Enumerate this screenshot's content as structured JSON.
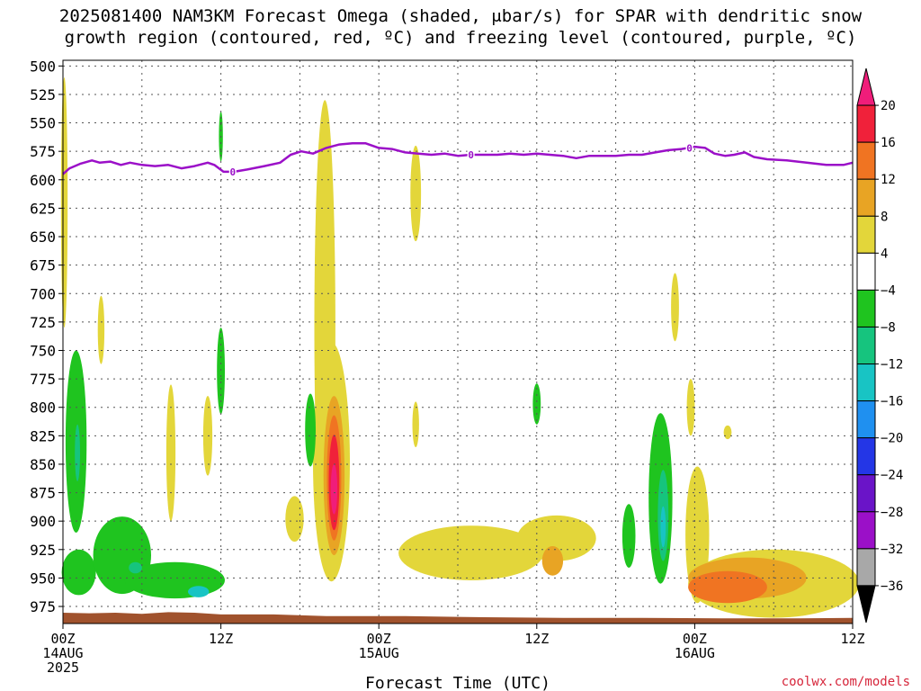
{
  "title": {
    "line1": "2025081400 NAM3KM Forecast Omega (shaded, μbar/s) for SPAR with dendritic snow",
    "line2": "growth region (contoured, red, ºC) and freezing level (contoured, purple, ºC)"
  },
  "credit": "coolwx.com/models",
  "chart_data": {
    "type": "heatmap",
    "title": "2025081400 NAM3KM Forecast Omega (shaded, μbar/s) for SPAR with dendritic snow growth region (contoured, red, ºC) and freezing level (contoured, purple, ºC)",
    "xlabel": "Forecast Time (UTC)",
    "ylabel": "",
    "xlim_hours": [
      0,
      60
    ],
    "ylim": [
      990,
      495
    ],
    "y_ticks": [
      500,
      525,
      550,
      575,
      600,
      625,
      650,
      675,
      700,
      725,
      750,
      775,
      800,
      825,
      850,
      875,
      900,
      925,
      950,
      975
    ],
    "x_ticks": [
      {
        "hour": 0,
        "lines": [
          "00Z",
          "14AUG",
          "2025"
        ]
      },
      {
        "hour": 12,
        "lines": [
          "12Z"
        ]
      },
      {
        "hour": 24,
        "lines": [
          "00Z",
          "15AUG"
        ]
      },
      {
        "hour": 36,
        "lines": [
          "12Z"
        ]
      },
      {
        "hour": 48,
        "lines": [
          "00Z",
          "16AUG"
        ]
      },
      {
        "hour": 60,
        "lines": [
          "12Z"
        ]
      }
    ],
    "grid": true,
    "colorbar": {
      "units": "μbar/s",
      "labels": [
        "20",
        "16",
        "12",
        "8",
        "4",
        "−4",
        "−8",
        "−12",
        "−16",
        "−20",
        "−24",
        "−28",
        "−32",
        "−36"
      ],
      "colors": [
        "#f01d7a",
        "#f0213a",
        "#f07422",
        "#e8a424",
        "#e3d63a",
        "#ffffff",
        "#1fc41f",
        "#16c47e",
        "#18c4c4",
        "#1f90f0",
        "#2436e6",
        "#6a14c8",
        "#9b10c8",
        "#a8a8a8",
        "#000000"
      ]
    },
    "freezing_level": {
      "label": "0",
      "color": "#9b10c8",
      "points": [
        [
          0.0,
          595
        ],
        [
          0.5,
          590
        ],
        [
          1.3,
          586
        ],
        [
          2.2,
          583
        ],
        [
          2.8,
          585
        ],
        [
          3.6,
          584
        ],
        [
          4.4,
          587
        ],
        [
          5.1,
          585
        ],
        [
          6.0,
          587
        ],
        [
          7.0,
          588
        ],
        [
          8.0,
          587
        ],
        [
          9.0,
          590
        ],
        [
          10.0,
          588
        ],
        [
          11.0,
          585
        ],
        [
          11.5,
          587
        ],
        [
          12.2,
          593
        ],
        [
          13.0,
          593
        ],
        [
          14.0,
          591
        ],
        [
          15.3,
          588
        ],
        [
          16.5,
          585
        ],
        [
          17.3,
          578
        ],
        [
          18.1,
          575
        ],
        [
          19.0,
          577
        ],
        [
          20.0,
          572
        ],
        [
          21.0,
          569
        ],
        [
          22.0,
          568
        ],
        [
          23.0,
          568
        ],
        [
          24.0,
          572
        ],
        [
          25.0,
          573
        ],
        [
          26.0,
          576
        ],
        [
          27.0,
          577
        ],
        [
          28.0,
          578
        ],
        [
          29.0,
          577
        ],
        [
          30.0,
          579
        ],
        [
          31.0,
          578
        ],
        [
          32.0,
          578
        ],
        [
          33.0,
          578
        ],
        [
          34.0,
          577
        ],
        [
          35.0,
          578
        ],
        [
          36.0,
          577
        ],
        [
          37.0,
          578
        ],
        [
          38.0,
          579
        ],
        [
          39.0,
          581
        ],
        [
          40.0,
          579
        ],
        [
          41.0,
          579
        ],
        [
          42.0,
          579
        ],
        [
          43.0,
          578
        ],
        [
          44.0,
          578
        ],
        [
          45.0,
          576
        ],
        [
          46.0,
          574
        ],
        [
          47.0,
          573
        ],
        [
          48.0,
          571
        ],
        [
          48.8,
          572
        ],
        [
          49.5,
          577
        ],
        [
          50.3,
          579
        ],
        [
          51.0,
          578
        ],
        [
          51.8,
          576
        ],
        [
          52.5,
          580
        ],
        [
          53.5,
          582
        ],
        [
          55.0,
          583
        ],
        [
          56.5,
          585
        ],
        [
          58.0,
          587
        ],
        [
          59.3,
          587
        ],
        [
          60.0,
          585
        ]
      ],
      "zero_labels": [
        [
          12.9,
          593
        ],
        [
          31.0,
          578
        ],
        [
          47.6,
          572
        ]
      ]
    },
    "omega_regions": [
      {
        "band": "4 to 8",
        "color": "#e3d63a",
        "t": 19.9,
        "p": 730,
        "half_width_h": 0.8,
        "half_height_mb": 200
      },
      {
        "band": "4 to 8",
        "color": "#e3d63a",
        "t": 20.4,
        "p": 848,
        "half_width_h": 1.4,
        "half_height_mb": 105
      },
      {
        "band": "8 to 12",
        "color": "#e8a424",
        "t": 20.6,
        "p": 860,
        "half_width_h": 0.8,
        "half_height_mb": 70
      },
      {
        "band": "12 to 16",
        "color": "#f07422",
        "t": 20.6,
        "p": 862,
        "half_width_h": 0.55,
        "half_height_mb": 55
      },
      {
        "band": "16 to 20",
        "color": "#f0213a",
        "t": 20.6,
        "p": 866,
        "half_width_h": 0.4,
        "half_height_mb": 42
      },
      {
        "band": "20+",
        "color": "#f01d7a",
        "t": 20.6,
        "p": 872,
        "half_width_h": 0.25,
        "half_height_mb": 22
      },
      {
        "band": "4 to 8",
        "color": "#e3d63a",
        "t": 17.6,
        "p": 898,
        "half_width_h": 0.7,
        "half_height_mb": 20
      },
      {
        "band": "4 to 8",
        "color": "#e3d63a",
        "t": 26.8,
        "p": 612,
        "half_width_h": 0.4,
        "half_height_mb": 42
      },
      {
        "band": "4 to 8",
        "color": "#e3d63a",
        "t": 26.8,
        "p": 815,
        "half_width_h": 0.25,
        "half_height_mb": 20
      },
      {
        "band": "4 to 8",
        "color": "#e3d63a",
        "t": 2.9,
        "p": 732,
        "half_width_h": 0.25,
        "half_height_mb": 30
      },
      {
        "band": "4 to 8",
        "color": "#e3d63a",
        "t": 8.2,
        "p": 840,
        "half_width_h": 0.35,
        "half_height_mb": 60
      },
      {
        "band": "4 to 8",
        "color": "#e3d63a",
        "t": 11.0,
        "p": 825,
        "half_width_h": 0.35,
        "half_height_mb": 35
      },
      {
        "band": "4 to 8",
        "color": "#e3d63a",
        "t": 0.1,
        "p": 620,
        "half_width_h": 0.25,
        "half_height_mb": 110
      },
      {
        "band": "4 to 8",
        "color": "#e3d63a",
        "t": 31.0,
        "p": 928,
        "half_width_h": 5.5,
        "half_height_mb": 24
      },
      {
        "band": "4 to 8",
        "color": "#e3d63a",
        "t": 37.5,
        "p": 915,
        "half_width_h": 3.0,
        "half_height_mb": 20
      },
      {
        "band": "8 to 12",
        "color": "#e8a424",
        "t": 37.2,
        "p": 935,
        "half_width_h": 0.8,
        "half_height_mb": 13
      },
      {
        "band": "4 to 8",
        "color": "#e3d63a",
        "t": 46.5,
        "p": 712,
        "half_width_h": 0.3,
        "half_height_mb": 30
      },
      {
        "band": "4 to 8",
        "color": "#e3d63a",
        "t": 47.7,
        "p": 800,
        "half_width_h": 0.3,
        "half_height_mb": 25
      },
      {
        "band": "4 to 8",
        "color": "#e3d63a",
        "t": 50.5,
        "p": 822,
        "half_width_h": 0.3,
        "half_height_mb": 6
      },
      {
        "band": "4 to 8",
        "color": "#e3d63a",
        "t": 48.2,
        "p": 912,
        "half_width_h": 0.9,
        "half_height_mb": 60
      },
      {
        "band": "4 to 8",
        "color": "#e3d63a",
        "t": 54.0,
        "p": 955,
        "half_width_h": 6.5,
        "half_height_mb": 30
      },
      {
        "band": "8 to 12",
        "color": "#e8a424",
        "t": 52.0,
        "p": 950,
        "half_width_h": 4.5,
        "half_height_mb": 18
      },
      {
        "band": "12 to 16",
        "color": "#f07422",
        "t": 50.5,
        "p": 958,
        "half_width_h": 3.0,
        "half_height_mb": 14
      },
      {
        "band": "−4 to −8",
        "color": "#1fc41f",
        "t": 1.0,
        "p": 830,
        "half_width_h": 0.8,
        "half_height_mb": 80
      },
      {
        "band": "−4 to −8",
        "color": "#1fc41f",
        "t": 1.2,
        "p": 945,
        "half_width_h": 1.3,
        "half_height_mb": 20
      },
      {
        "band": "−4 to −8",
        "color": "#1fc41f",
        "t": 4.5,
        "p": 930,
        "half_width_h": 2.2,
        "half_height_mb": 34
      },
      {
        "band": "−4 to −8",
        "color": "#1fc41f",
        "t": 8.5,
        "p": 952,
        "half_width_h": 3.8,
        "half_height_mb": 16
      },
      {
        "band": "−12 to −16",
        "color": "#18c4c4",
        "t": 10.3,
        "p": 962,
        "half_width_h": 0.8,
        "half_height_mb": 5
      },
      {
        "band": "−8 to −12",
        "color": "#16c47e",
        "t": 5.5,
        "p": 941,
        "half_width_h": 0.5,
        "half_height_mb": 5
      },
      {
        "band": "−8 to −12",
        "color": "#16c47e",
        "t": 1.1,
        "p": 840,
        "half_width_h": 0.2,
        "half_height_mb": 25
      },
      {
        "band": "−4 to −8",
        "color": "#1fc41f",
        "t": 12.0,
        "p": 768,
        "half_width_h": 0.3,
        "half_height_mb": 38
      },
      {
        "band": "−4 to −8",
        "color": "#1fc41f",
        "t": 12.0,
        "p": 562,
        "half_width_h": 0.15,
        "half_height_mb": 22
      },
      {
        "band": "−4 to −8",
        "color": "#1fc41f",
        "t": 18.8,
        "p": 820,
        "half_width_h": 0.4,
        "half_height_mb": 32
      },
      {
        "band": "−4 to −8",
        "color": "#1fc41f",
        "t": 36.0,
        "p": 797,
        "half_width_h": 0.3,
        "half_height_mb": 18
      },
      {
        "band": "−4 to −8",
        "color": "#1fc41f",
        "t": 43.0,
        "p": 913,
        "half_width_h": 0.5,
        "half_height_mb": 28
      },
      {
        "band": "−4 to −8",
        "color": "#1fc41f",
        "t": 45.4,
        "p": 880,
        "half_width_h": 0.9,
        "half_height_mb": 75
      },
      {
        "band": "−8 to −12",
        "color": "#16c47e",
        "t": 45.6,
        "p": 895,
        "half_width_h": 0.4,
        "half_height_mb": 40
      },
      {
        "band": "−12 to −16",
        "color": "#18c4c4",
        "t": 45.6,
        "p": 905,
        "half_width_h": 0.2,
        "half_height_mb": 18
      }
    ],
    "terrain": {
      "color": "#a0522d",
      "top_mb": 982
    }
  }
}
